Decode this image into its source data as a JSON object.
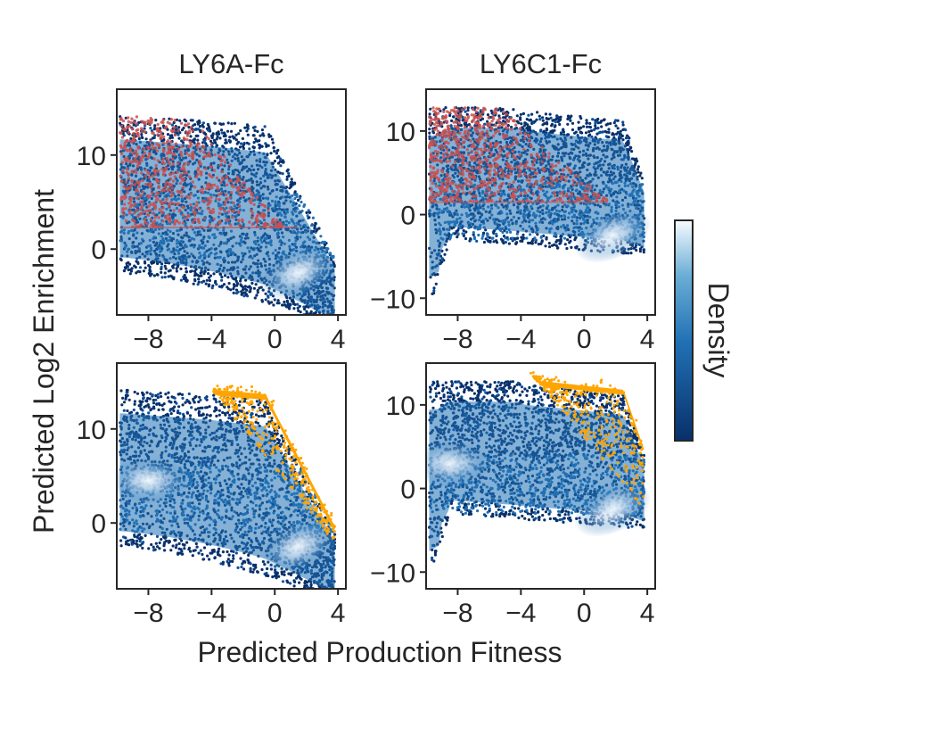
{
  "figure": {
    "xlabel": "Predicted Production Fitness",
    "ylabel": "Predicted Log2 Enrichment",
    "colorbar_label": "Density",
    "colorbar_colormap": "Blues_r",
    "colors": {
      "density_low": "#08306b",
      "density_mid": "#2171b5",
      "density_high": "#f7fbff",
      "highlight_red": "#c8504f",
      "highlight_orange": "#ffa500",
      "axis": "#262626"
    }
  },
  "chart_data": [
    {
      "type": "scatter",
      "panel": "top-left",
      "title": "LY6A-Fc",
      "xlim": [
        -10,
        4.5
      ],
      "ylim": [
        -7,
        17
      ],
      "xticks": [
        -8,
        -4,
        0,
        4
      ],
      "yticks": [
        0,
        10
      ],
      "xtick_labels": [
        "−8",
        "−4",
        "0",
        "4"
      ],
      "ytick_labels": [
        "0",
        "10"
      ],
      "density_hotspots": [
        {
          "x": 1.5,
          "y": -2.5
        }
      ],
      "highlight": {
        "color": "red",
        "rule": "y > 2.3 and y < 14.5 - 2.2*(x+5.5)",
        "region_x": [
          -9.8,
          1.5
        ],
        "region_y": [
          2.3,
          14.5
        ]
      }
    },
    {
      "type": "scatter",
      "panel": "top-right",
      "title": "LY6C1-Fc",
      "xlim": [
        -10,
        4.5
      ],
      "ylim": [
        -12,
        15
      ],
      "xticks": [
        -8,
        -4,
        0,
        4
      ],
      "yticks": [
        -10,
        0,
        10
      ],
      "xtick_labels": [
        "−8",
        "−4",
        "0",
        "4"
      ],
      "ytick_labels": [
        "−10",
        "0",
        "10"
      ],
      "density_hotspots": [
        {
          "x": 1.8,
          "y": -2.5
        }
      ],
      "highlight": {
        "color": "red",
        "rule": "y > 1.5 upper-left wedge",
        "region_x": [
          -9.8,
          1.5
        ],
        "region_y": [
          1.5,
          13
        ]
      }
    },
    {
      "type": "scatter",
      "panel": "bottom-left",
      "title": "",
      "xlim": [
        -10,
        4.5
      ],
      "ylim": [
        -7,
        17
      ],
      "xticks": [
        -8,
        -4,
        0,
        4
      ],
      "yticks": [
        0,
        10
      ],
      "xtick_labels": [
        "−8",
        "−4",
        "0",
        "4"
      ],
      "ytick_labels": [
        "0",
        "10"
      ],
      "density_hotspots": [
        {
          "x": -8.0,
          "y": 4.5
        },
        {
          "x": 1.5,
          "y": -2.5
        }
      ],
      "highlight": {
        "color": "orange",
        "rule": "y > 10.8 - 1.88*(x+3.9)",
        "region_x": [
          -3.9,
          3.8
        ],
        "region_y": [
          -2.2,
          14
        ]
      }
    },
    {
      "type": "scatter",
      "panel": "bottom-right",
      "title": "",
      "xlim": [
        -10,
        4.5
      ],
      "ylim": [
        -12,
        15
      ],
      "xticks": [
        -8,
        -4,
        0,
        4
      ],
      "yticks": [
        -10,
        0,
        10
      ],
      "xtick_labels": [
        "−8",
        "−4",
        "0",
        "4"
      ],
      "ytick_labels": [
        "−10",
        "0",
        "10"
      ],
      "density_hotspots": [
        {
          "x": -8.5,
          "y": 3.0
        },
        {
          "x": 1.8,
          "y": -2.5
        }
      ],
      "highlight": {
        "color": "orange",
        "rule": "y > 10.5 - 1.8*(x+3.5)",
        "region_x": [
          -3.5,
          3.8
        ],
        "region_y": [
          -2.5,
          14
        ]
      }
    }
  ]
}
